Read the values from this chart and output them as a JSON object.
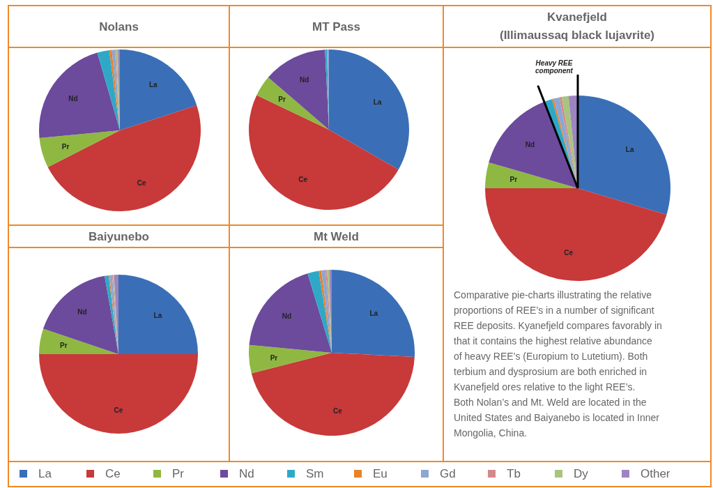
{
  "chart_data": [
    {
      "type": "pie",
      "title": "Nolans",
      "categories": [
        "La",
        "Ce",
        "Pr",
        "Nd",
        "Sm",
        "Eu",
        "Gd",
        "Tb",
        "Dy",
        "Other"
      ],
      "values": [
        20,
        47.5,
        6,
        22,
        2.4,
        0.5,
        0.6,
        0.2,
        0.4,
        0.4
      ],
      "colors": [
        "#3a6fb7",
        "#c8393a",
        "#8fb842",
        "#6c4a9c",
        "#2fa8c8",
        "#e8822a",
        "#8ea6d3",
        "#d48a8a",
        "#a9c47f",
        "#9c85c0"
      ],
      "legend": "bottom"
    },
    {
      "type": "pie",
      "title": "MT Pass",
      "categories": [
        "La",
        "Ce",
        "Pr",
        "Nd",
        null,
        null,
        null,
        null,
        null,
        null
      ],
      "values": [
        33.3,
        48.8,
        4.2,
        12.9,
        0.4,
        null,
        0.4,
        null,
        null,
        null
      ],
      "colors": [
        "#3a6fb7",
        "#c8393a",
        "#8fb842",
        "#6c4a9c",
        "#2fa8c8",
        null,
        "#8ea6d3",
        null,
        null,
        null
      ]
    },
    {
      "type": "pie",
      "title": "Baiyunebo",
      "categories": [
        "La",
        "Ce",
        "Pr",
        "Nd",
        null,
        null,
        null,
        null,
        null,
        null
      ],
      "values": [
        25,
        50,
        5.2,
        17,
        0.8,
        0.2,
        0.5,
        0.2,
        0.2,
        0.9
      ],
      "colors": [
        "#3a6fb7",
        "#c8393a",
        "#8fb842",
        "#6c4a9c",
        "#2fa8c8",
        "#e8822a",
        "#8ea6d3",
        "#d48a8a",
        "#a9c47f",
        "#9c85c0"
      ]
    },
    {
      "type": "pie",
      "title": "Mt Weld",
      "categories": [
        "La",
        "Ce",
        "Pr",
        "Nd",
        null,
        null,
        null,
        null,
        null,
        null
      ],
      "values": [
        25.8,
        45.2,
        5.5,
        18.8,
        2.2,
        0.5,
        0.8,
        0.3,
        0.4,
        0.5
      ],
      "colors": [
        "#3a6fb7",
        "#c8393a",
        "#8fb842",
        "#6c4a9c",
        "#2fa8c8",
        "#e8822a",
        "#8ea6d3",
        "#d48a8a",
        "#a9c47f",
        "#9c85c0"
      ]
    },
    {
      "type": "pie",
      "title": "Kvanefjeld",
      "subtitle": "(Illimaussaq black lujavrite)",
      "categories": [
        "La",
        "Ce",
        "Pr",
        "Nd",
        null,
        null,
        null,
        null,
        null,
        null
      ],
      "values": [
        29.6,
        45.4,
        4.5,
        14.6,
        1.4,
        0.3,
        1,
        0.4,
        1.2,
        1.6
      ],
      "colors": [
        "#3a6fb7",
        "#c8393a",
        "#8fb842",
        "#6c4a9c",
        "#2fa8c8",
        "#e8822a",
        "#8ea6d3",
        "#d48a8a",
        "#a9c47f",
        "#9c85c0"
      ],
      "annotations": [
        "Heavy REE component",
        "Comparative pie-charts illustrating the relative proportions of REE’s in a number of significant REE deposits. Kyanefjeld compares favorably in that it contains the highest relative abundance of heavy REE’s (Europium to Lutetium). Both terbium and dysprosium are both enriched in Kvanefjeld ores relative to the light REE’s. Both Nolan’s and Mt. Weld are located in the United States and Baiyanebo is located in Inner Mongolia, China."
      ]
    }
  ]
}
